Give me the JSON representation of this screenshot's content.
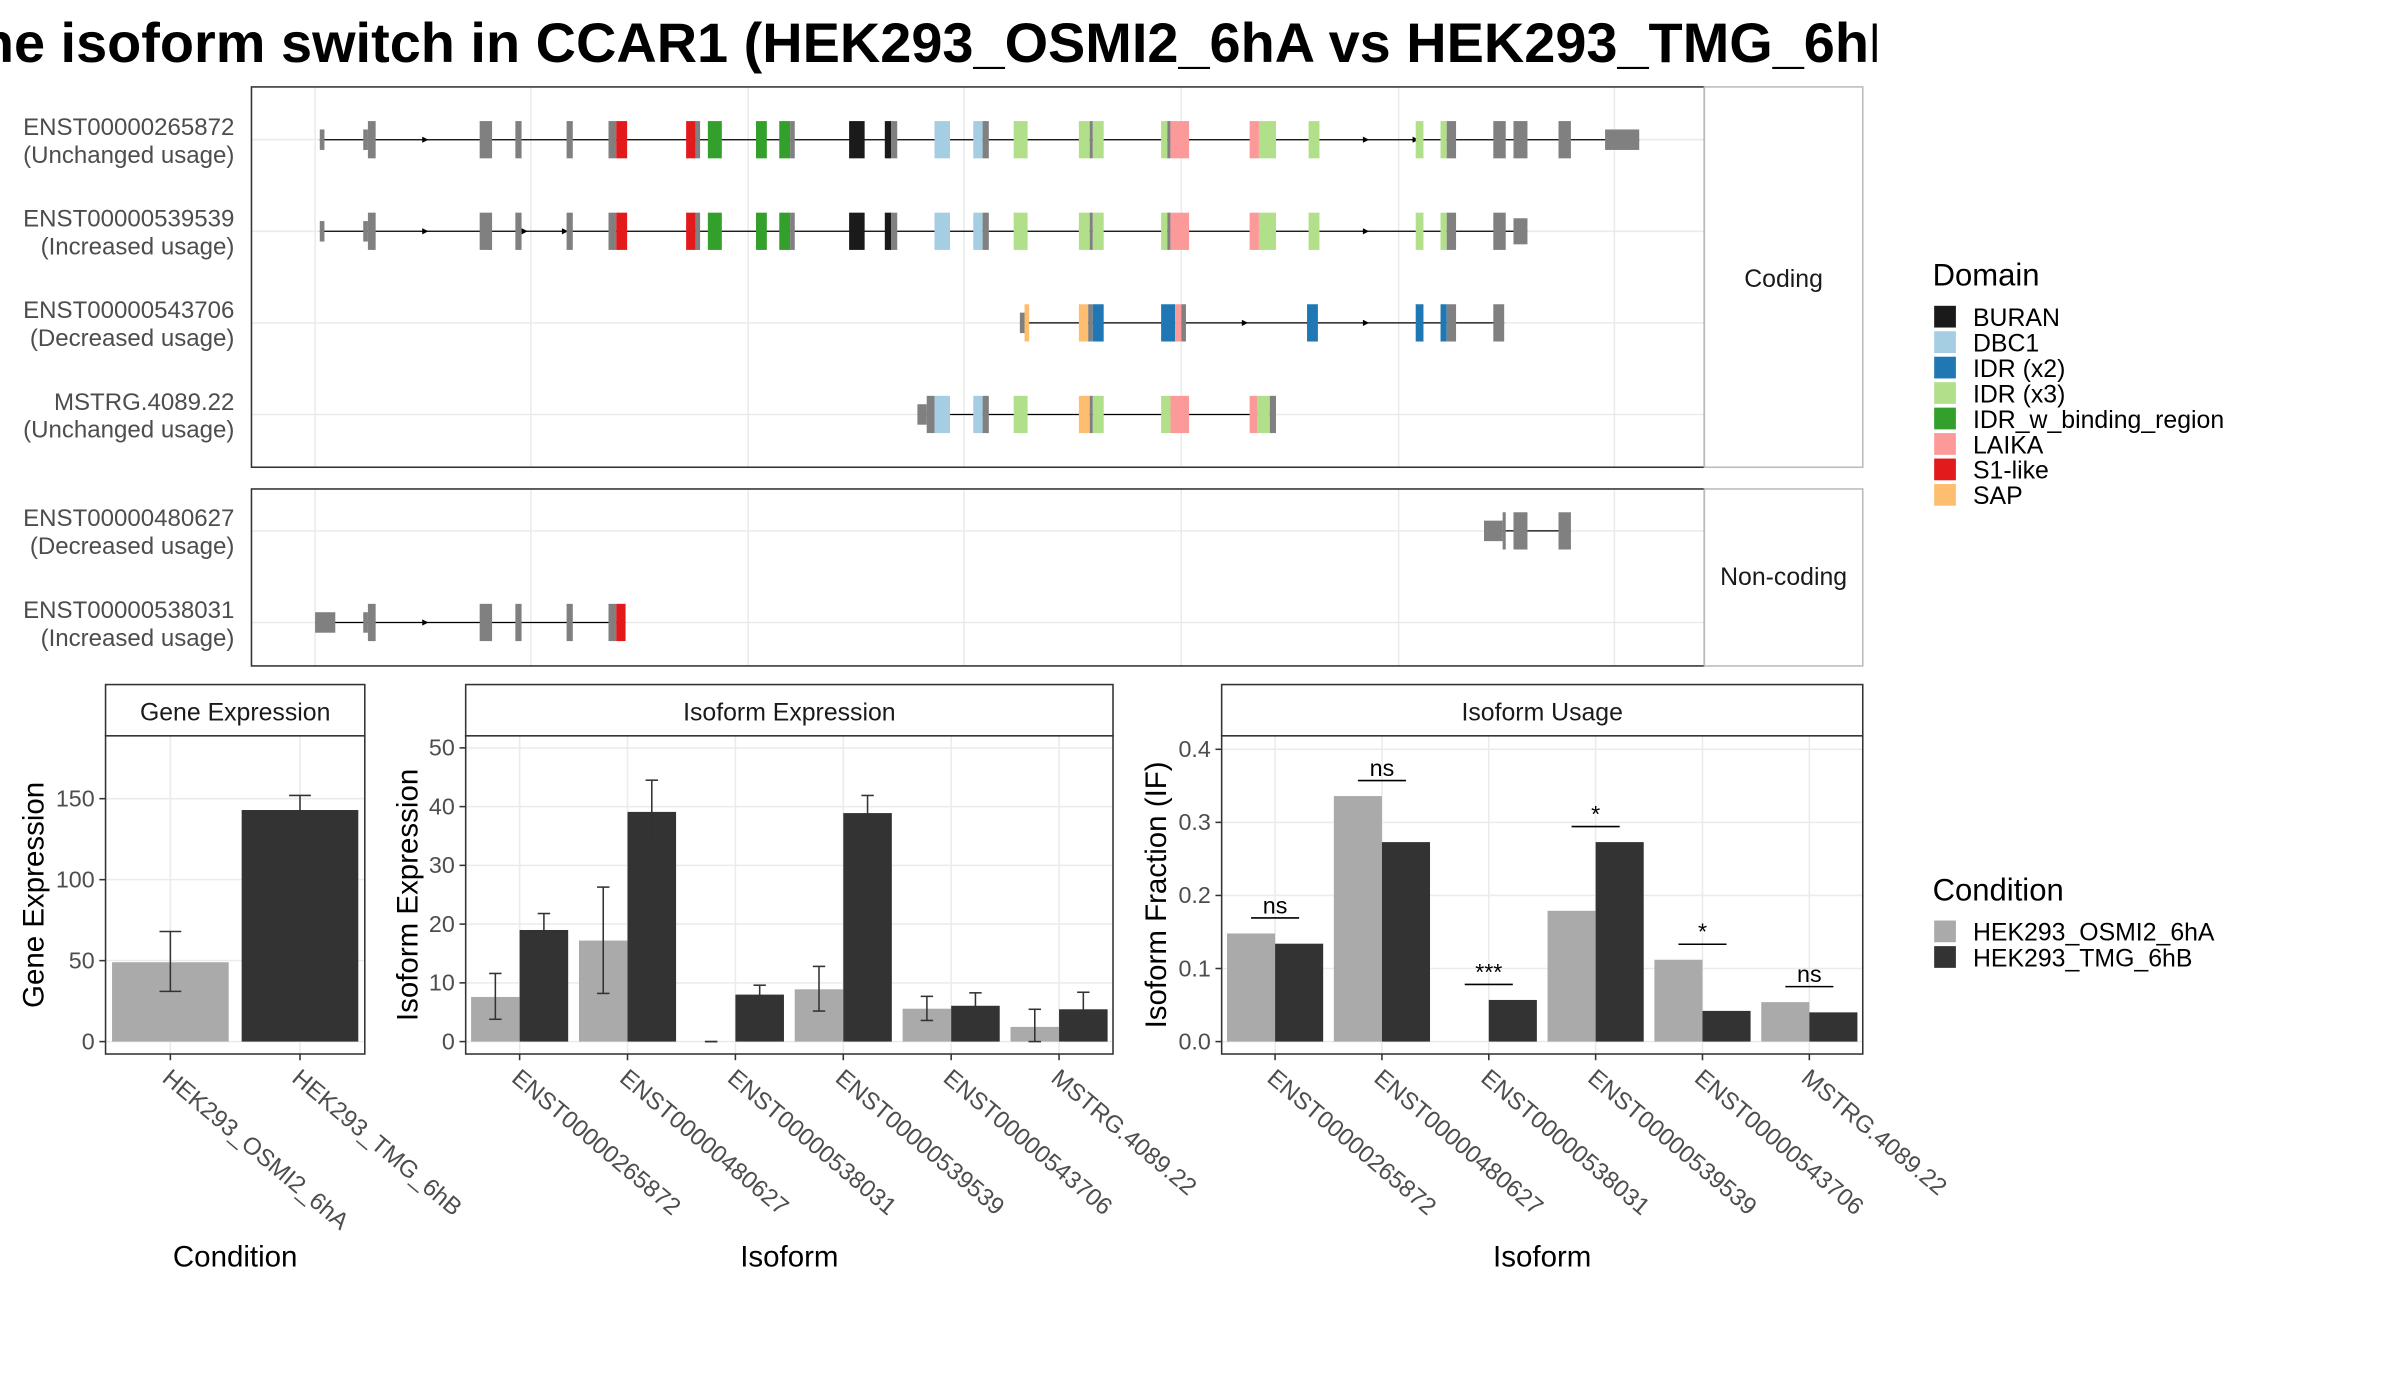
{
  "title": "he isoform switch in CCAR1 (HEK293_OSMI2_6hA vs HEK293_TMG_6hB",
  "colors": {
    "domains": {
      "BURAN": "#1a1a1a",
      "DBC1": "#a6cee3",
      "IDR (x2)": "#1f78b4",
      "IDR (x3)": "#b2df8a",
      "IDR_w_binding_region": "#33a02c",
      "LAIKA": "#fb9a99",
      "S1-like": "#e31a1c",
      "SAP": "#fdbf6f"
    },
    "exon": "#808080",
    "cond_a": "#aaaaaa",
    "cond_b": "#333333"
  },
  "facets": {
    "coding": "Coding",
    "noncoding": "Non-coding"
  },
  "transcripts": [
    {
      "id": "ENST00000265872",
      "note": "(Unchanged usage)",
      "group": "coding"
    },
    {
      "id": "ENST00000539539",
      "note": "(Increased usage)",
      "group": "coding"
    },
    {
      "id": "ENST00000543706",
      "note": "(Decreased usage)",
      "group": "coding"
    },
    {
      "id": "MSTRG.4089.22",
      "note": "(Unchanged usage)",
      "group": "coding"
    },
    {
      "id": "ENST00000480627",
      "note": "(Decreased usage)",
      "group": "noncoding"
    },
    {
      "id": "ENST00000538031",
      "note": "(Increased usage)",
      "group": "noncoding"
    }
  ],
  "legend_domain": {
    "title": "Domain",
    "items": [
      "BURAN",
      "DBC1",
      "IDR (x2)",
      "IDR (x3)",
      "IDR_w_binding_region",
      "LAIKA",
      "S1-like",
      "SAP"
    ]
  },
  "legend_condition": {
    "title": "Condition",
    "items": [
      "HEK293_OSMI2_6hA",
      "HEK293_TMG_6hB"
    ]
  },
  "chart_data": [
    {
      "type": "bar",
      "title": "Gene Expression",
      "xlabel": "Condition",
      "ylabel": "Gene Expression",
      "categories": [
        "HEK293_OSMI2_6hA",
        "HEK293_TMG_6hB"
      ],
      "values": [
        49,
        143
      ],
      "error_low": [
        31,
        133
      ],
      "error_high": [
        68,
        152
      ],
      "ylim": [
        0,
        185
      ],
      "yticks": [
        0,
        50,
        100,
        150
      ]
    },
    {
      "type": "bar",
      "title": "Isoform Expression",
      "xlabel": "Isoform",
      "ylabel": "Isoform Expression",
      "categories": [
        "ENST00000265872",
        "ENST00000480627",
        "ENST00000538031",
        "ENST00000539539",
        "ENST00000543706",
        "MSTRG.4089.22"
      ],
      "series": [
        {
          "name": "HEK293_OSMI2_6hA",
          "values": [
            7.6,
            17.2,
            0,
            8.9,
            5.6,
            2.5
          ],
          "error_low": [
            3.8,
            8.2,
            0,
            5.2,
            3.6,
            0
          ],
          "error_high": [
            11.6,
            26.3,
            0,
            12.8,
            7.7,
            5.5
          ]
        },
        {
          "name": "HEK293_TMG_6hB",
          "values": [
            19.0,
            39.1,
            8.0,
            38.9,
            6.1,
            5.5
          ],
          "error_low": [
            16.3,
            33.5,
            6.4,
            35.9,
            4.2,
            2.6
          ],
          "error_high": [
            21.8,
            44.5,
            9.6,
            41.9,
            8.3,
            8.4
          ]
        }
      ],
      "ylim": [
        0,
        51
      ],
      "yticks": [
        0,
        10,
        20,
        30,
        40,
        50
      ]
    },
    {
      "type": "bar",
      "title": "Isoform Usage",
      "xlabel": "Isoform",
      "ylabel": "Isoform Fraction (IF)",
      "categories": [
        "ENST00000265872",
        "ENST00000480627",
        "ENST00000538031",
        "ENST00000539539",
        "ENST00000543706",
        "MSTRG.4089.22"
      ],
      "series": [
        {
          "name": "HEK293_OSMI2_6hA",
          "values": [
            0.148,
            0.336,
            0.0,
            0.179,
            0.112,
            0.054
          ]
        },
        {
          "name": "HEK293_TMG_6hB",
          "values": [
            0.134,
            0.273,
            0.057,
            0.273,
            0.042,
            0.04
          ]
        }
      ],
      "significance": [
        "ns",
        "ns",
        "***",
        "*",
        "*",
        "ns"
      ],
      "ylim": [
        0,
        0.41
      ],
      "yticks": [
        0.0,
        0.1,
        0.2,
        0.3,
        0.4
      ],
      "ytick_labels": [
        "0.0",
        "0.1",
        "0.2",
        "0.3",
        "0.4"
      ]
    }
  ]
}
